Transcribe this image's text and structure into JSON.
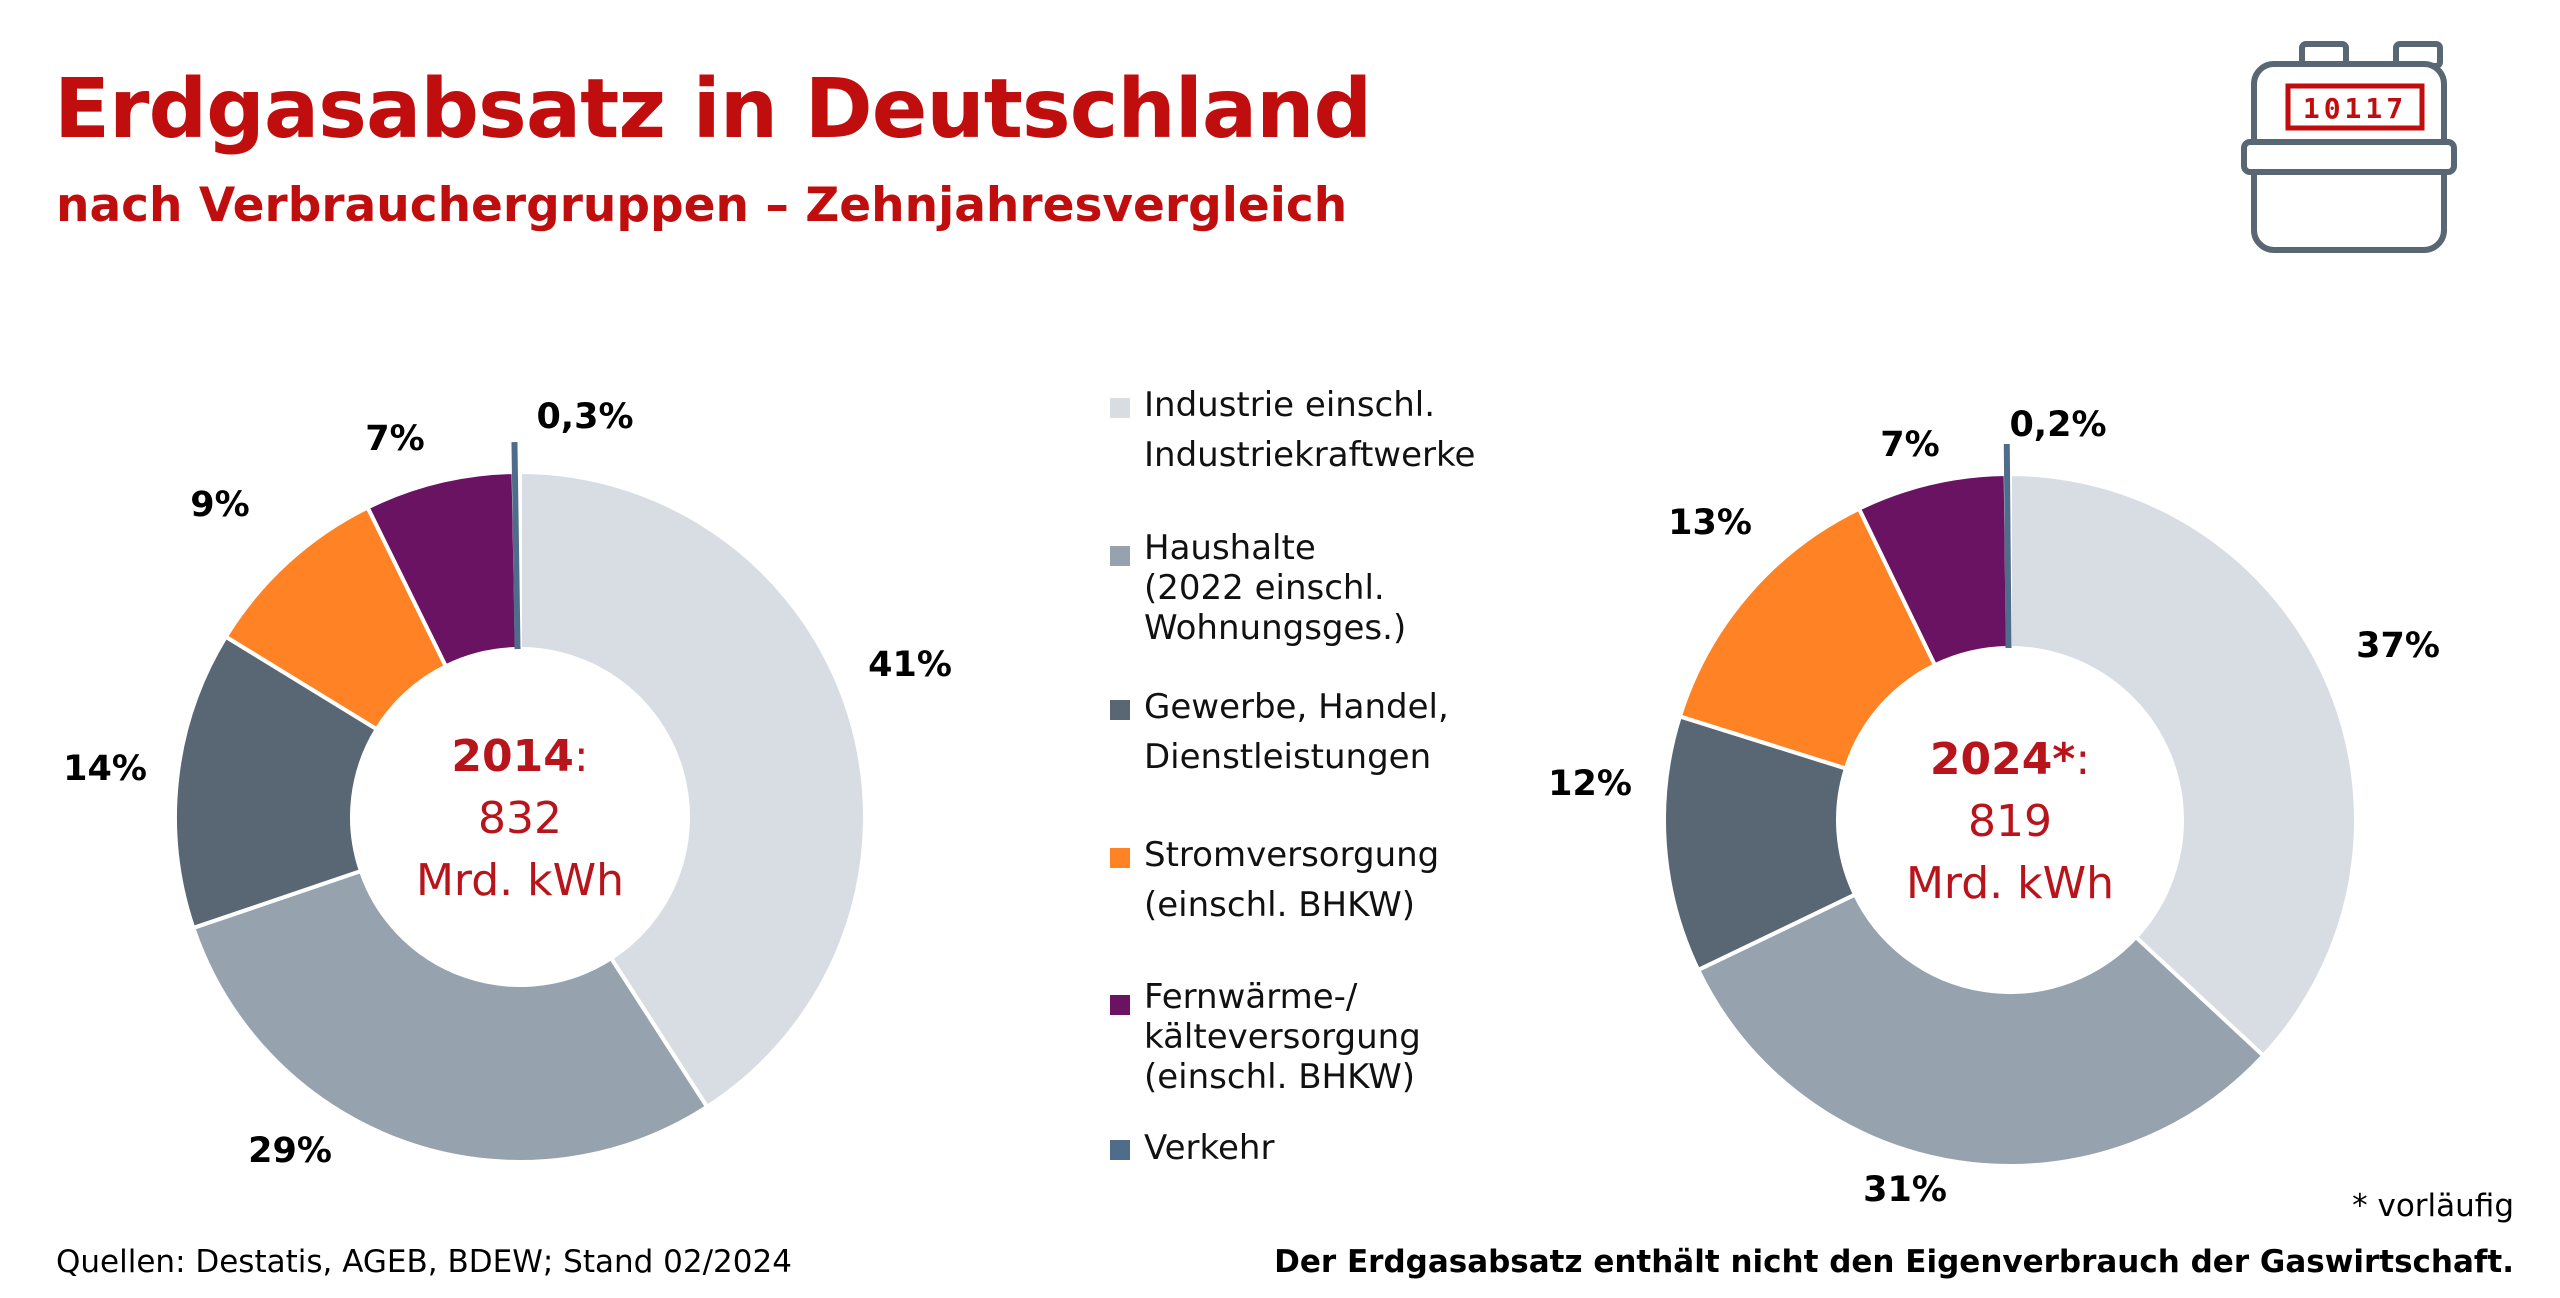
{
  "header": {
    "title": "Erdgasabsatz in Deutschland",
    "subtitle": "nach Verbrauchergruppen – Zehnjahresvergleich"
  },
  "meter": {
    "icon": "gas-meter-icon",
    "display": "10117"
  },
  "legend": [
    {
      "lines": [
        "Industrie einschl.",
        "Industriekraftwerke"
      ],
      "color": "#d8dde3"
    },
    {
      "lines": [
        "Haushalte",
        "(2022 einschl.",
        "Wohnungsges.)"
      ],
      "color": "#96a3ae"
    },
    {
      "lines": [
        "Gewerbe, Handel,",
        "Dienstleistungen"
      ],
      "color": "#586773"
    },
    {
      "lines": [
        "Stromversorgung",
        "(einschl. BHKW)"
      ],
      "color": "#ff8325"
    },
    {
      "lines": [
        "Fernwärme-/",
        "kälteversorgung",
        "(einschl. BHKW)"
      ],
      "color": "#6a1363"
    },
    {
      "lines": [
        "Verkehr"
      ],
      "color": "#4f6d8a"
    }
  ],
  "chart_data": [
    {
      "type": "pie",
      "categories": [
        "Industrie einschl. Industriekraftwerke",
        "Haushalte",
        "Gewerbe, Handel, Dienstleistungen",
        "Stromversorgung",
        "Fernwärme-/kälteversorgung",
        "Verkehr"
      ],
      "values": [
        41,
        29,
        14,
        9,
        7,
        0.3
      ],
      "labels": [
        "41%",
        "29%",
        "14%",
        "9%",
        "7%",
        "0,3%"
      ],
      "colors": [
        "#d8dde3",
        "#96a3ae",
        "#586773",
        "#ff8325",
        "#6a1363",
        "#4f6d8a"
      ],
      "center": {
        "year": "2014",
        "suffix": ":",
        "value": "832",
        "unit": "Mrd. kWh"
      }
    },
    {
      "type": "pie",
      "categories": [
        "Industrie einschl. Industriekraftwerke",
        "Haushalte",
        "Gewerbe, Handel, Dienstleistungen",
        "Stromversorgung",
        "Fernwärme-/kälteversorgung",
        "Verkehr"
      ],
      "values": [
        37,
        31,
        12,
        13,
        7,
        0.2
      ],
      "labels": [
        "37%",
        "31%",
        "12%",
        "13%",
        "7%",
        "0,2%"
      ],
      "colors": [
        "#d8dde3",
        "#96a3ae",
        "#586773",
        "#ff8325",
        "#6a1363",
        "#4f6d8a"
      ],
      "center": {
        "year": "2024*",
        "suffix": ":",
        "value": "819",
        "unit": "Mrd. kWh"
      }
    }
  ],
  "footer": {
    "note": "* vorläufig",
    "source": "Quellen: Destatis, AGEB, BDEW; Stand 02/2024",
    "disclaimer": "Der Erdgasabsatz enthält nicht den Eigenverbrauch der Gaswirtschaft."
  }
}
